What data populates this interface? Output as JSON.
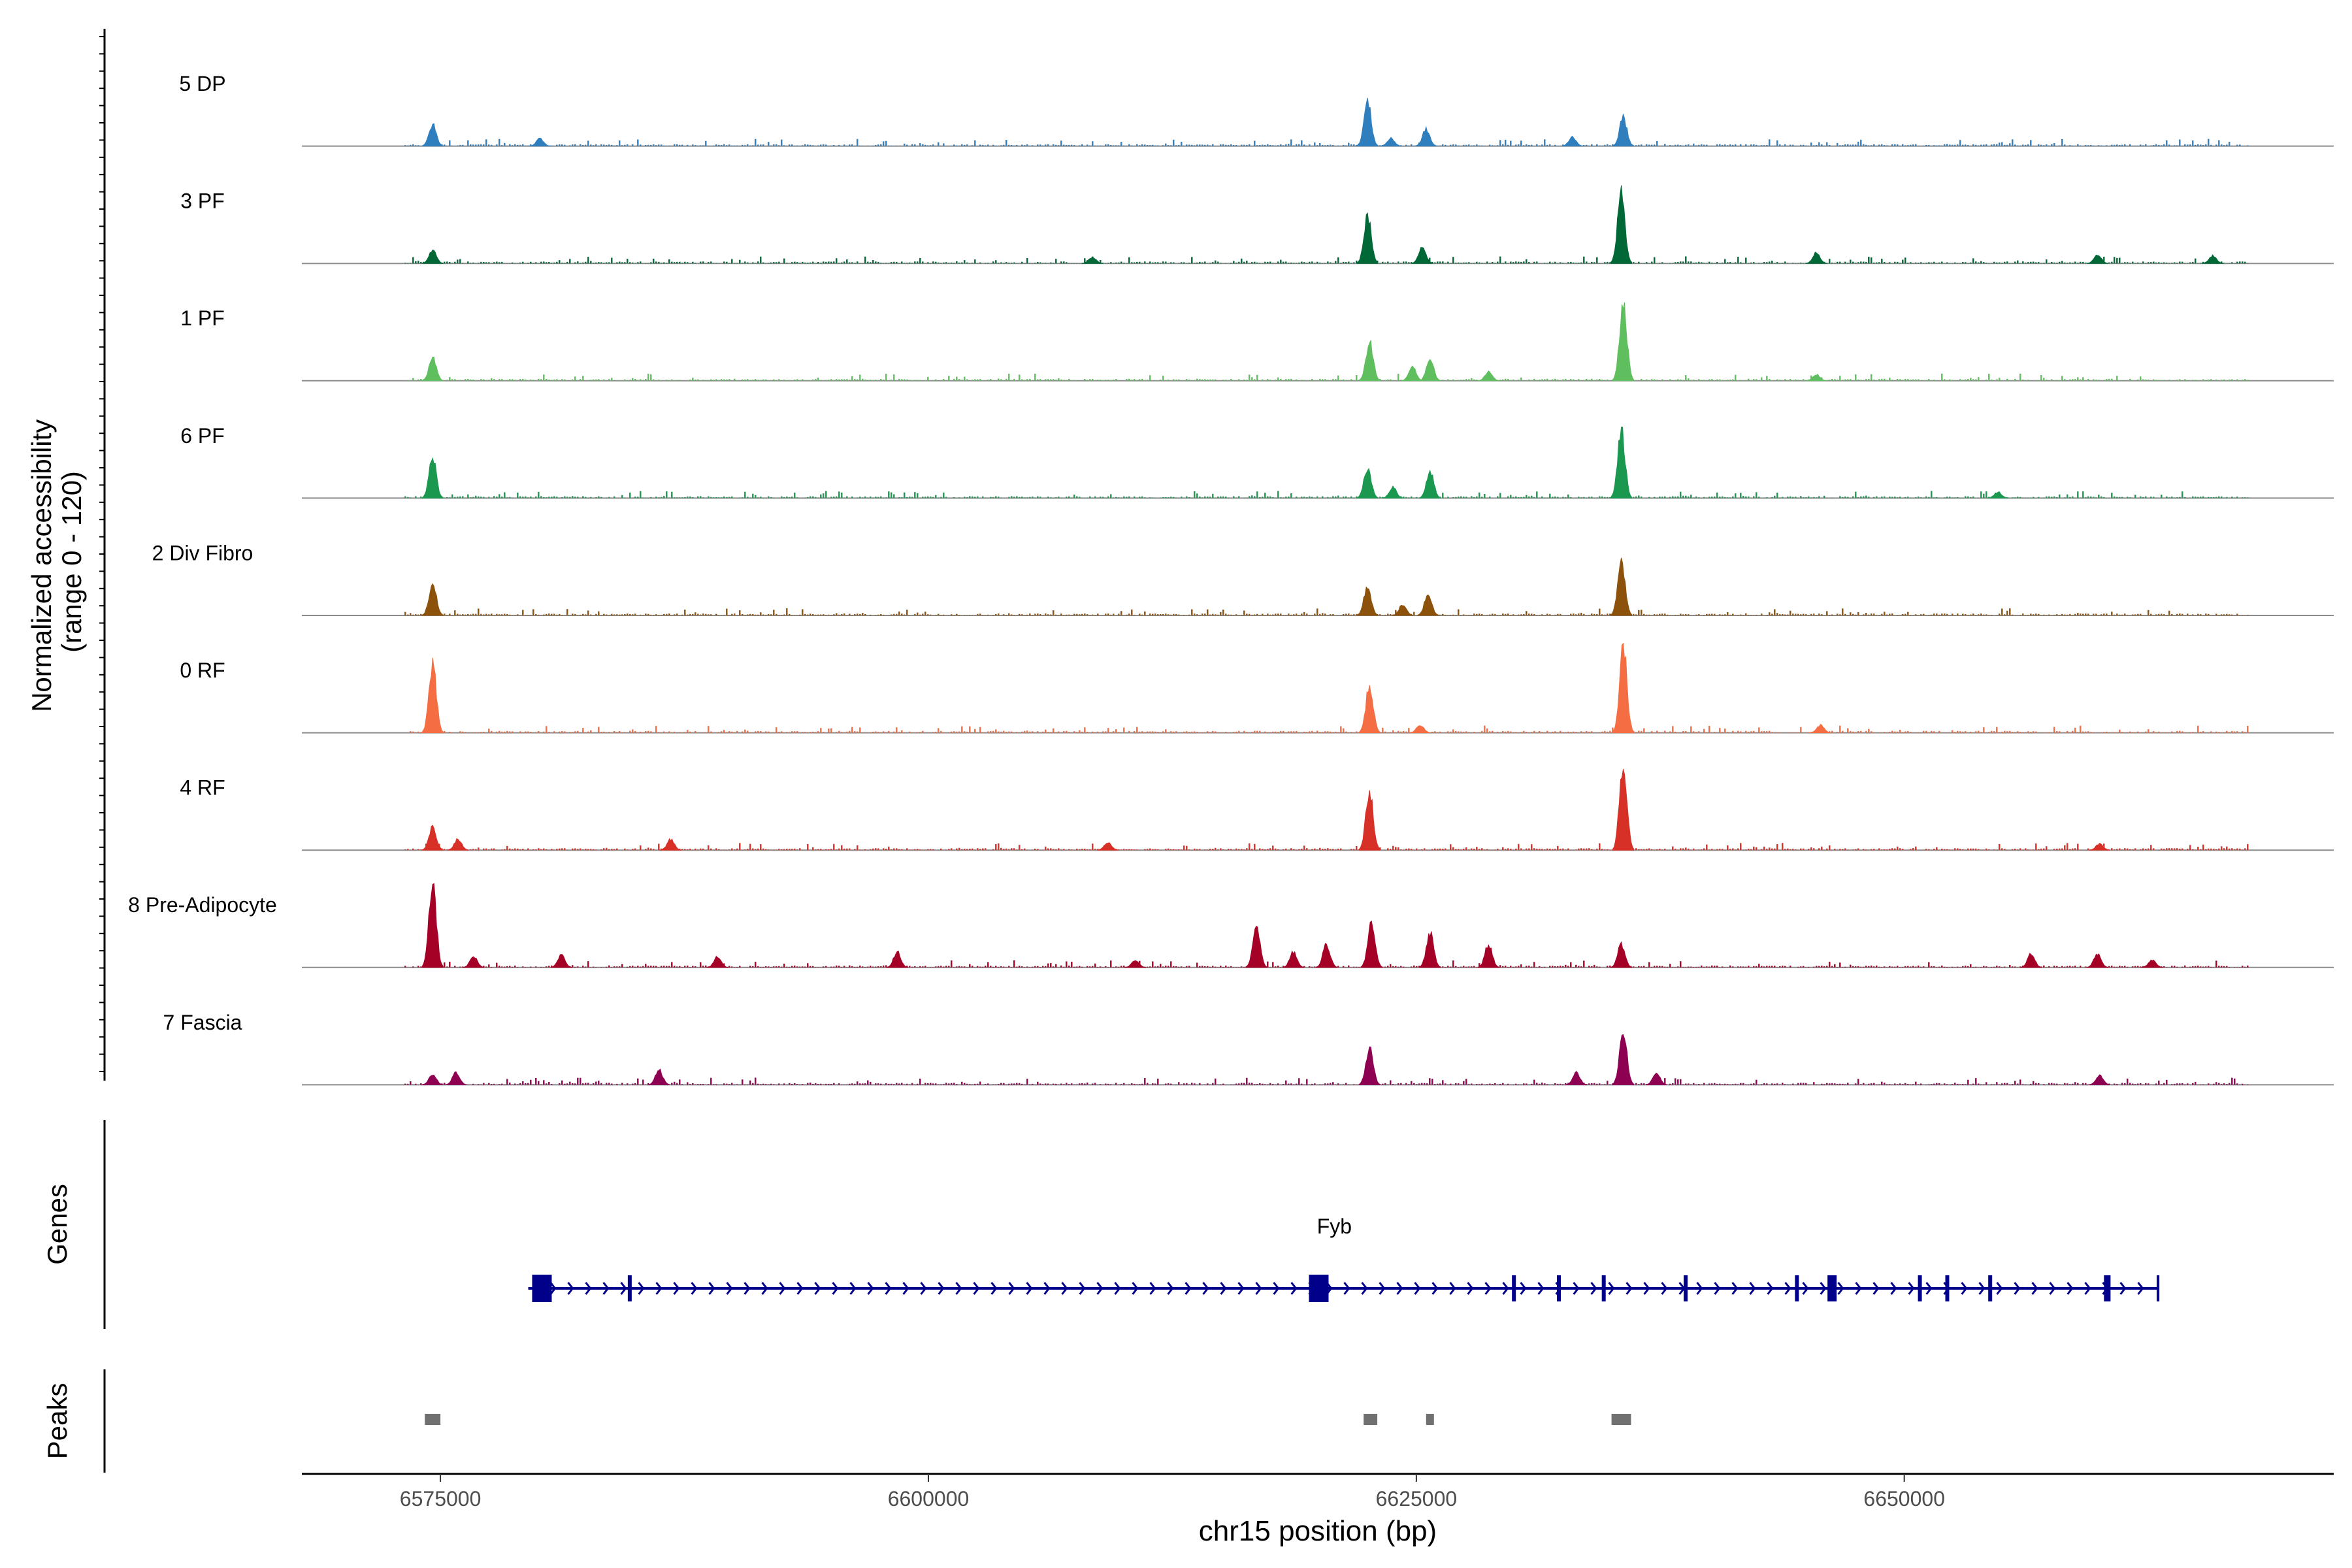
{
  "chart_data": {
    "type": "coverage",
    "chromosome": "chr15",
    "x_range_bp": [
      6567900,
      6672000
    ],
    "xlabel": "chr15 position (bp)",
    "x_ticks": [
      "6575000",
      "6600000",
      "6625000",
      "6650000"
    ],
    "coverage_panel": {
      "ylabel_line1": "Normalized accessibility",
      "ylabel_line2": "(range 0 - 120)",
      "y_range": [
        0,
        120
      ],
      "tracks": [
        {
          "name": "5 DP",
          "color": "#2f7fbf",
          "peaks": [
            [
              6574600,
              28
            ],
            [
              6580100,
              10
            ],
            [
              6622500,
              58
            ],
            [
              6623700,
              10
            ],
            [
              6625500,
              22
            ],
            [
              6633000,
              12
            ],
            [
              6635600,
              38
            ]
          ]
        },
        {
          "name": "3 PF",
          "color": "#006837",
          "peaks": [
            [
              6574600,
              18
            ],
            [
              6608400,
              8
            ],
            [
              6622500,
              62
            ],
            [
              6625300,
              22
            ],
            [
              6635500,
              96
            ],
            [
              6645500,
              14
            ],
            [
              6659900,
              12
            ],
            [
              6665800,
              10
            ]
          ]
        },
        {
          "name": "1 PF",
          "color": "#5fbf5f",
          "peaks": [
            [
              6574600,
              30
            ],
            [
              6622600,
              50
            ],
            [
              6624800,
              18
            ],
            [
              6625700,
              28
            ],
            [
              6628700,
              12
            ],
            [
              6635600,
              105
            ],
            [
              6645500,
              8
            ]
          ]
        },
        {
          "name": "6 PF",
          "color": "#1a9850",
          "peaks": [
            [
              6574600,
              52
            ],
            [
              6622500,
              40
            ],
            [
              6623800,
              14
            ],
            [
              6625700,
              36
            ],
            [
              6635500,
              92
            ],
            [
              6654800,
              8
            ]
          ]
        },
        {
          "name": "2 Div Fibro",
          "color": "#8c510a",
          "peaks": [
            [
              6574600,
              42
            ],
            [
              6622500,
              38
            ],
            [
              6624300,
              14
            ],
            [
              6625600,
              28
            ],
            [
              6635500,
              75
            ]
          ]
        },
        {
          "name": "0 RF",
          "color": "#f46d43",
          "peaks": [
            [
              6574600,
              90
            ],
            [
              6622600,
              62
            ],
            [
              6625200,
              10
            ],
            [
              6635600,
              115
            ],
            [
              6645700,
              10
            ]
          ]
        },
        {
          "name": "4 RF",
          "color": "#d73027",
          "peaks": [
            [
              6574600,
              30
            ],
            [
              6575900,
              14
            ],
            [
              6586800,
              14
            ],
            [
              6609200,
              10
            ],
            [
              6622600,
              80
            ],
            [
              6635600,
              118
            ],
            [
              6660000,
              8
            ]
          ]
        },
        {
          "name": "8 Pre-Adipocyte",
          "color": "#a50026",
          "peaks": [
            [
              6574600,
              110
            ],
            [
              6576700,
              14
            ],
            [
              6581200,
              16
            ],
            [
              6589200,
              14
            ],
            [
              6598400,
              20
            ],
            [
              6610600,
              10
            ],
            [
              6616800,
              54
            ],
            [
              6618700,
              20
            ],
            [
              6620400,
              30
            ],
            [
              6622700,
              60
            ],
            [
              6625700,
              46
            ],
            [
              6628700,
              30
            ],
            [
              6635500,
              30
            ],
            [
              6656500,
              18
            ],
            [
              6659900,
              18
            ],
            [
              6662700,
              10
            ]
          ]
        },
        {
          "name": "7 Fascia",
          "color": "#8e0152",
          "peaks": [
            [
              6574600,
              14
            ],
            [
              6575800,
              16
            ],
            [
              6586200,
              20
            ],
            [
              6622600,
              48
            ],
            [
              6633200,
              16
            ],
            [
              6635600,
              72
            ],
            [
              6637300,
              16
            ],
            [
              6660000,
              12
            ]
          ]
        }
      ]
    },
    "genes_panel": {
      "ylabel": "Genes",
      "gene_name": "Fyb",
      "strand": "+",
      "start": 6579500,
      "end": 6663000,
      "exons": [
        6580200,
        6584700,
        6620000,
        6630000,
        6632300,
        6634600,
        6638800,
        6644500,
        6646300,
        6650800,
        6652200,
        6654400,
        6660400
      ]
    },
    "peaks_panel": {
      "ylabel": "Peaks",
      "peaks": [
        [
          6574200,
          6575000
        ],
        [
          6622300,
          6623000
        ],
        [
          6625500,
          6625900
        ],
        [
          6635000,
          6636000
        ]
      ]
    }
  }
}
